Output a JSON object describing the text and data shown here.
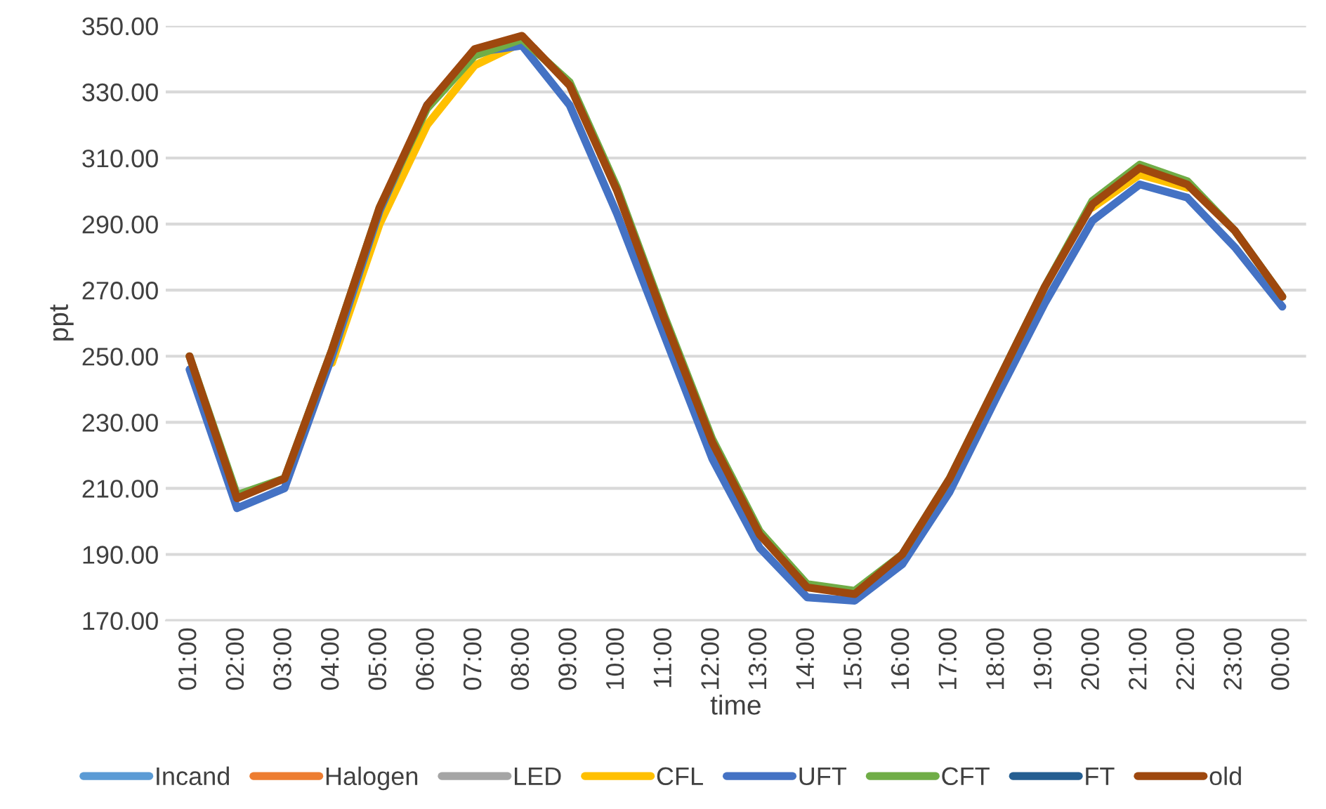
{
  "chart_data": {
    "type": "line",
    "xlabel": "time",
    "ylabel": "ppt",
    "categories": [
      "01:00",
      "02:00",
      "03:00",
      "04:00",
      "05:00",
      "06:00",
      "07:00",
      "08:00",
      "09:00",
      "10:00",
      "11:00",
      "12:00",
      "13:00",
      "14:00",
      "15:00",
      "16:00",
      "17:00",
      "18:00",
      "19:00",
      "20:00",
      "21:00",
      "22:00",
      "23:00",
      "00:00"
    ],
    "ylim": [
      170,
      350
    ],
    "yticks": [
      {
        "value": 170,
        "label": "170.00"
      },
      {
        "value": 190,
        "label": "190.00"
      },
      {
        "value": 210,
        "label": "210.00"
      },
      {
        "value": 230,
        "label": "230.00"
      },
      {
        "value": 250,
        "label": "250.00"
      },
      {
        "value": 270,
        "label": "270.00"
      },
      {
        "value": 290,
        "label": "290.00"
      },
      {
        "value": 310,
        "label": "310.00"
      },
      {
        "value": 330,
        "label": "330.00"
      },
      {
        "value": 350,
        "label": "350.00"
      }
    ],
    "grid": "y",
    "legend": "bottom",
    "marker": "none",
    "line_style": "solid",
    "series": [
      {
        "name": "Incand",
        "color": "#5b9bd5",
        "values": [
          null,
          null,
          null,
          null,
          null,
          null,
          null,
          null,
          null,
          null,
          null,
          null,
          null,
          null,
          null,
          null,
          null,
          null,
          null,
          null,
          null,
          null,
          null,
          null
        ]
      },
      {
        "name": "Halogen",
        "color": "#ed7d31",
        "values": [
          null,
          null,
          null,
          null,
          null,
          null,
          null,
          null,
          null,
          null,
          null,
          null,
          null,
          null,
          null,
          null,
          null,
          null,
          null,
          null,
          null,
          null,
          null,
          null
        ]
      },
      {
        "name": "LED",
        "color": "#a5a5a5",
        "values": [
          null,
          null,
          null,
          null,
          null,
          null,
          null,
          null,
          null,
          null,
          null,
          null,
          null,
          null,
          null,
          null,
          null,
          null,
          null,
          null,
          null,
          null,
          null,
          null
        ]
      },
      {
        "name": "CFL",
        "color": "#ffc000",
        "values": [
          null,
          null,
          null,
          248,
          290,
          320,
          338,
          345,
          null,
          null,
          null,
          null,
          null,
          null,
          null,
          null,
          null,
          null,
          null,
          295,
          305,
          301,
          null,
          null
        ]
      },
      {
        "name": "UFT",
        "color": "#4472c4",
        "values": [
          246,
          204,
          210,
          250,
          294,
          326,
          342,
          344,
          326,
          293,
          256,
          219,
          192,
          177,
          176,
          187,
          209,
          238,
          266,
          291,
          302,
          298,
          283,
          265
        ]
      },
      {
        "name": "CFT",
        "color": "#70ad47",
        "values": [
          250,
          208,
          213,
          252,
          295,
          325,
          341,
          346,
          333,
          301,
          262,
          225,
          197,
          181,
          179,
          190,
          213,
          242,
          271,
          297,
          308,
          303,
          288,
          268
        ]
      },
      {
        "name": "FT",
        "color": "#255e91",
        "values": [
          null,
          null,
          null,
          null,
          null,
          null,
          null,
          null,
          null,
          null,
          null,
          null,
          null,
          null,
          null,
          null,
          null,
          null,
          null,
          null,
          null,
          null,
          null,
          null
        ]
      },
      {
        "name": "old",
        "color": "#9e480e",
        "values": [
          250,
          207,
          213,
          252,
          295,
          326,
          343,
          347,
          332,
          300,
          261,
          224,
          196,
          180,
          178,
          190,
          213,
          242,
          271,
          296,
          307,
          302,
          288,
          268
        ]
      }
    ]
  }
}
